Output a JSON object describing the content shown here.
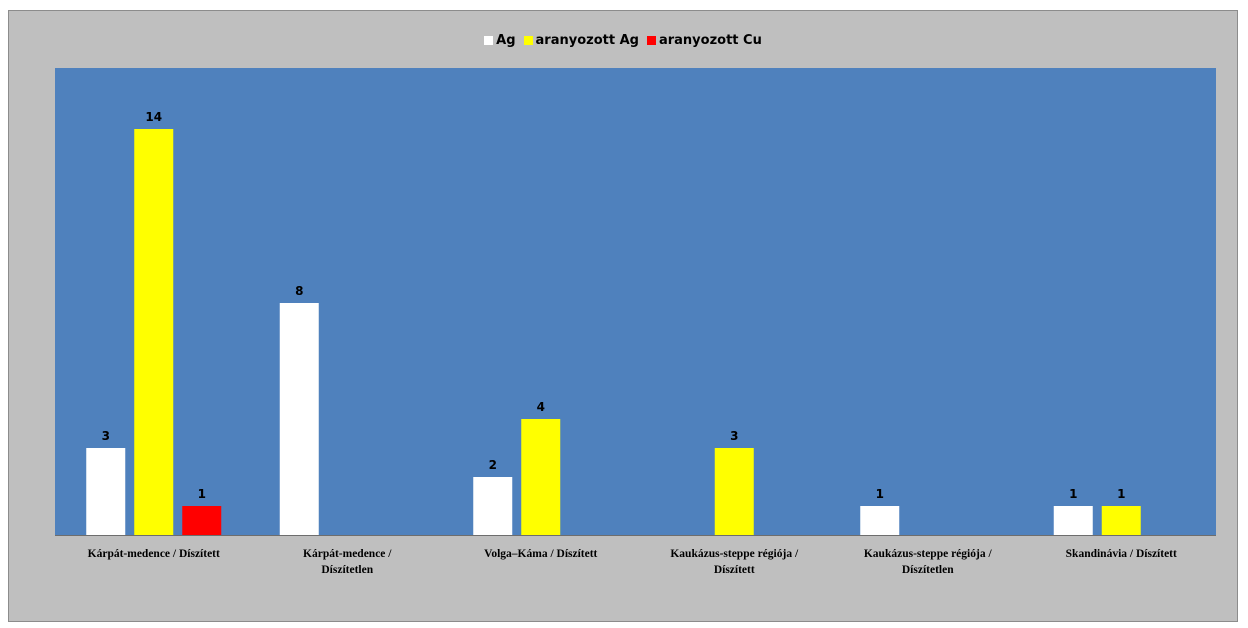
{
  "chart_data": {
    "type": "bar",
    "categories": [
      [
        "Kárpát-medence / Díszített"
      ],
      [
        "Kárpát-medence /",
        "Díszítetlen"
      ],
      [
        "Volga–Káma / Díszített"
      ],
      [
        "Kaukázus-steppe régiója /",
        "Díszített"
      ],
      [
        "Kaukázus-steppe régiója /",
        "Díszítetlen"
      ],
      [
        "Skandinávia / Díszített"
      ]
    ],
    "series": [
      {
        "name": "Ag",
        "color": "#ffffff",
        "values": [
          3,
          8,
          2,
          null,
          1,
          1
        ]
      },
      {
        "name": "aranyozott Ag",
        "color": "#ffff00",
        "values": [
          14,
          null,
          4,
          3,
          null,
          1
        ]
      },
      {
        "name": "aranyozott Cu",
        "color": "#ff0000",
        "values": [
          1,
          null,
          null,
          null,
          null,
          null
        ]
      }
    ],
    "ylim": [
      0,
      14
    ],
    "plot_background": "#4f81bd",
    "chart_background": "#bfbfbf",
    "legend_position": "top",
    "grid": false,
    "title": "",
    "xlabel": "",
    "ylabel": ""
  }
}
